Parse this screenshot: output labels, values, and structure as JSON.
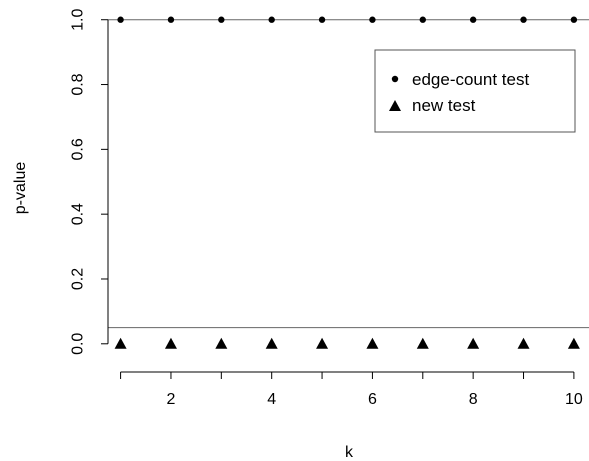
{
  "chart_data": {
    "type": "scatter",
    "xlabel": "k",
    "ylabel": "p-value",
    "xlim": [
      0.75,
      10.3
    ],
    "ylim": [
      -0.05,
      1.03
    ],
    "x_ticks": [
      2,
      4,
      6,
      8,
      10
    ],
    "x_tick_labels": [
      "2",
      "4",
      "6",
      "8",
      "10"
    ],
    "y_ticks": [
      0.0,
      0.2,
      0.4,
      0.6,
      0.8,
      1.0
    ],
    "y_tick_labels": [
      "0.0",
      "0.2",
      "0.4",
      "0.6",
      "0.8",
      "1.0"
    ],
    "reference_lines": [
      0.05,
      1.0
    ],
    "grid": false,
    "legend_position": "top-right",
    "series": [
      {
        "name": "edge-count test",
        "marker": "circle",
        "x": [
          1,
          2,
          3,
          4,
          5,
          6,
          7,
          8,
          9,
          10
        ],
        "y": [
          1,
          1,
          1,
          1,
          1,
          1,
          1,
          1,
          1,
          1
        ]
      },
      {
        "name": "new test",
        "marker": "triangle",
        "x": [
          1,
          2,
          3,
          4,
          5,
          6,
          7,
          8,
          9,
          10
        ],
        "y": [
          0,
          0,
          0,
          0,
          0,
          0,
          0,
          0,
          0,
          0
        ]
      }
    ]
  }
}
